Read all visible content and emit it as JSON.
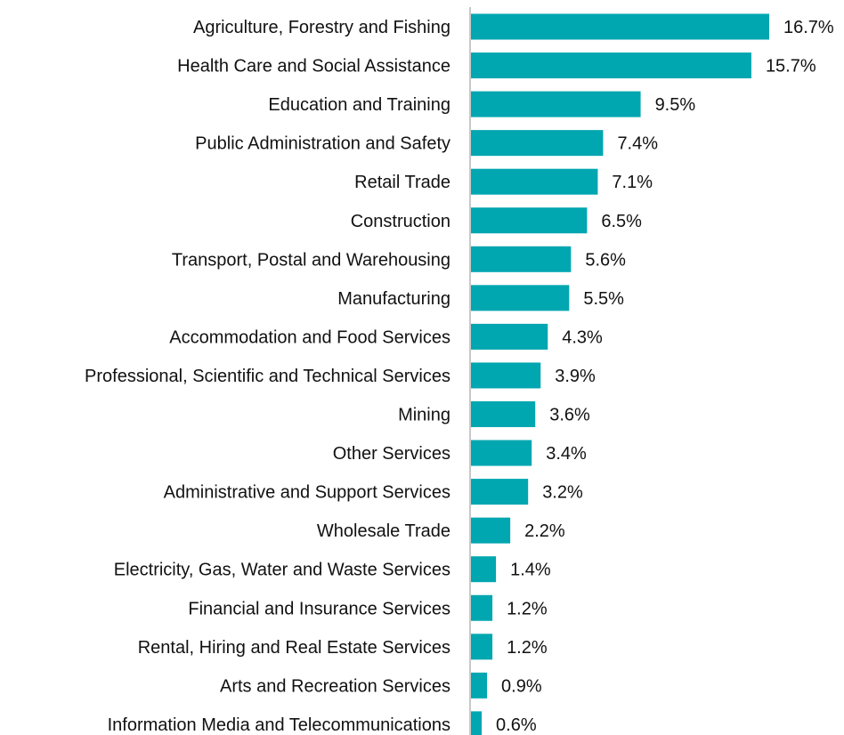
{
  "chart_data": {
    "type": "bar",
    "orientation": "horizontal",
    "categories": [
      "Agriculture, Forestry and Fishing",
      "Health Care and Social Assistance",
      "Education and Training",
      "Public Administration and Safety",
      "Retail Trade",
      "Construction",
      "Transport, Postal and Warehousing",
      "Manufacturing",
      "Accommodation and Food Services",
      "Professional, Scientific and Technical Services",
      "Mining",
      "Other Services",
      "Administrative and Support Services",
      "Wholesale Trade",
      "Electricity, Gas, Water and Waste Services",
      "Financial and Insurance Services",
      "Rental, Hiring and Real Estate Services",
      "Arts and Recreation Services",
      "Information Media and Telecommunications"
    ],
    "values": [
      16.7,
      15.7,
      9.5,
      7.4,
      7.1,
      6.5,
      5.6,
      5.5,
      4.3,
      3.9,
      3.6,
      3.4,
      3.2,
      2.2,
      1.4,
      1.2,
      1.2,
      0.9,
      0.6
    ],
    "value_labels": [
      "16.7%",
      "15.7%",
      "9.5%",
      "7.4%",
      "7.1%",
      "6.5%",
      "5.6%",
      "5.5%",
      "4.3%",
      "3.9%",
      "3.6%",
      "3.4%",
      "3.2%",
      "2.2%",
      "1.4%",
      "1.2%",
      "1.2%",
      "0.9%",
      "0.6%"
    ],
    "unit": "%",
    "xlim": [
      0,
      16.7
    ],
    "grid": false,
    "legend": "none",
    "colors": {
      "bar": "#00A6B0",
      "axis": "#C8C8C8",
      "text": "#111111"
    }
  }
}
